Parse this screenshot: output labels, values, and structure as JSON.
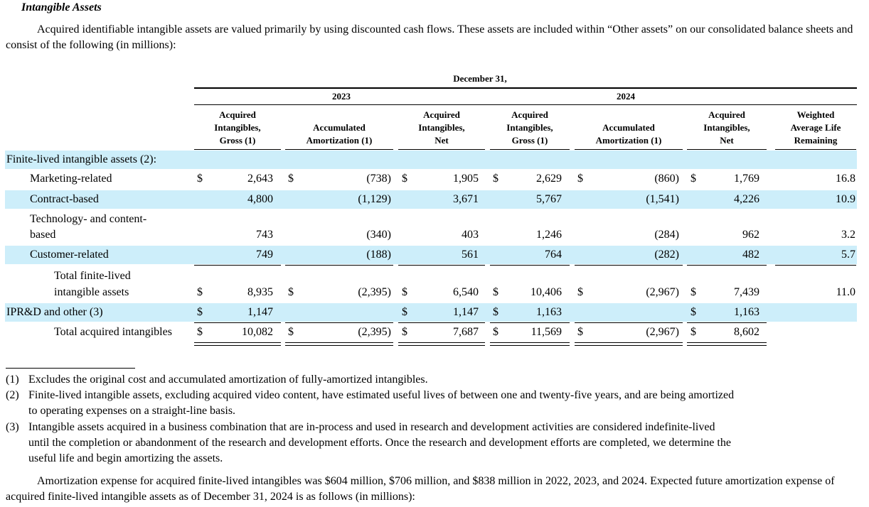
{
  "section_title": "Intangible Assets",
  "intro": "Acquired identifiable intangible assets are valued primarily by using discounted cash flows. These assets are included within “Other assets” on our consolidated balance sheets and consist of the following (in millions):",
  "table": {
    "date_header": "December 31,",
    "years": [
      "2023",
      "2024"
    ],
    "col_gross": [
      "Acquired",
      "Intangibles,",
      "Gross (1)"
    ],
    "col_amort": [
      "Accumulated",
      "Amortization (1)"
    ],
    "col_net": [
      "Acquired",
      "Intangibles,",
      "Net"
    ],
    "col_life": [
      "Weighted",
      "Average Life",
      "Remaining"
    ],
    "currency": "$",
    "finite_label": "Finite-lived intangible assets (2):",
    "rows": [
      {
        "label": "Marketing-related",
        "g23": "2,643",
        "a23": "(738)",
        "n23": "1,905",
        "g24": "2,629",
        "a24": "(860)",
        "n24": "1,769",
        "life": "16.8"
      },
      {
        "label": "Contract-based",
        "g23": "4,800",
        "a23": "(1,129)",
        "n23": "3,671",
        "g24": "5,767",
        "a24": "(1,541)",
        "n24": "4,226",
        "life": "10.9"
      },
      {
        "label1": "Technology- and content-",
        "label2": "based",
        "g23": "743",
        "a23": "(340)",
        "n23": "403",
        "g24": "1,246",
        "a24": "(284)",
        "n24": "962",
        "life": "3.2"
      },
      {
        "label": "Customer-related",
        "g23": "749",
        "a23": "(188)",
        "n23": "561",
        "g24": "764",
        "a24": "(282)",
        "n24": "482",
        "life": "5.7"
      }
    ],
    "total_finite": {
      "label1": "Total finite-lived",
      "label2": "intangible assets",
      "g23": "8,935",
      "a23": "(2,395)",
      "n23": "6,540",
      "g24": "10,406",
      "a24": "(2,967)",
      "n24": "7,439",
      "life": "11.0"
    },
    "iprd": {
      "label": "IPR&D and other (3)",
      "g23": "1,147",
      "n23": "1,147",
      "g24": "1,163",
      "n24": "1,163"
    },
    "total": {
      "label": "Total acquired intangibles",
      "g23": "10,082",
      "a23": "(2,395)",
      "n23": "7,687",
      "g24": "11,569",
      "a24": "(2,967)",
      "n24": "8,602"
    }
  },
  "footnotes": [
    {
      "num": "(1)",
      "text": "Excludes the original cost and accumulated amortization of fully-amortized intangibles."
    },
    {
      "num": "(2)",
      "text1": "Finite-lived intangible assets, excluding acquired video content, have estimated useful lives of between one and twenty-five years, and are being amortized",
      "text2": "to operating expenses on a straight-line basis."
    },
    {
      "num": "(3)",
      "text1": "Intangible assets acquired in a business combination that are in-process and used in research and development activities are considered indefinite-lived",
      "text2": "until the completion or abandonment of the research and development efforts. Once the research and development efforts are completed, we determine the",
      "text3": "useful life and begin amortizing the assets."
    }
  ],
  "closing": "Amortization expense for acquired finite-lived intangibles was $604 million, $706 million, and $838 million in 2022, 2023, and 2024. Expected future amortization expense of acquired finite-lived intangible assets as of December 31, 2024 is as follows (in millions):"
}
